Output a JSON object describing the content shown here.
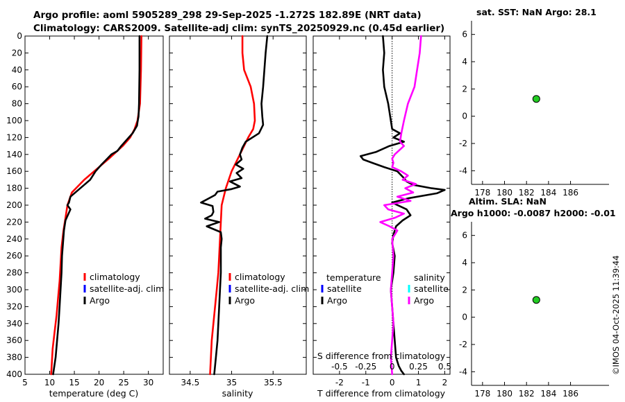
{
  "header": {
    "line1": "Argo profile: aoml 5905289_298 29-Sep-2025 -1.272S 182.89E (NRT data)",
    "line2": "Climatology: CARS2009. Satellite-adj clim: synTS_20250929.nc (0.45d earlier)"
  },
  "side": {
    "sst_title": "sat. SST: NaN Argo: 28.1",
    "sla_title1": "Altim. SLA: NaN",
    "sla_title2": "Argo h1000: -0.0087 h2000: -0.01",
    "credit": "©IMOS 04-Oct-2025 11:39:44"
  },
  "colors": {
    "climatology": "#ff0000",
    "satellite": "#0000ff",
    "argo": "#000000",
    "satellite_sal": "#00ffff",
    "argo_sal_diff": "#ff00ff",
    "marker": "#22cc22"
  },
  "chart_data": [
    {
      "type": "line",
      "name": "temperature-panel",
      "xlabel": "temperature (deg C)",
      "xlim": [
        5,
        33
      ],
      "xticks": [
        5,
        10,
        15,
        20,
        25,
        30
      ],
      "ylim": [
        0,
        400
      ],
      "yticks": [
        0,
        20,
        40,
        60,
        80,
        100,
        120,
        140,
        160,
        180,
        200,
        220,
        240,
        260,
        280,
        300,
        320,
        340,
        360,
        380,
        400
      ],
      "legend": [
        "climatology",
        "satellite-adj. clim",
        "Argo"
      ],
      "series": [
        {
          "name": "climatology",
          "color": "#ff0000",
          "x": [
            28.6,
            28.5,
            28.3,
            27.8,
            27.2,
            26.3,
            24.8,
            22.0,
            19.0,
            17.0,
            14.5,
            13.6,
            13.2,
            12.8,
            12.4,
            12.2,
            12.0,
            11.7,
            11.4,
            11.0,
            10.6,
            10.3
          ],
          "depth": [
            0,
            40,
            80,
            100,
            110,
            120,
            130,
            145,
            160,
            170,
            185,
            200,
            215,
            230,
            250,
            270,
            290,
            310,
            330,
            350,
            370,
            400
          ]
        },
        {
          "name": "Argo",
          "color": "#000000",
          "x": [
            28.2,
            28.2,
            28.1,
            28.0,
            27.8,
            27.7,
            26.8,
            24.5,
            23.7,
            22.5,
            21.5,
            20.5,
            19.3,
            18.2,
            15.2,
            14.2,
            13.9,
            13.6,
            14.2,
            13.2,
            12.9,
            12.7,
            12.5,
            12.4,
            12.2,
            12.0,
            11.8,
            11.5,
            11.2,
            10.7
          ],
          "depth": [
            0,
            40,
            80,
            95,
            102,
            106,
            115,
            130,
            136,
            140,
            146,
            152,
            160,
            170,
            185,
            190,
            197,
            200,
            205,
            218,
            230,
            245,
            260,
            280,
            300,
            320,
            340,
            360,
            380,
            400
          ]
        }
      ]
    },
    {
      "type": "line",
      "name": "salinity-panel",
      "xlabel": "salinity",
      "xlim": [
        34.25,
        35.9
      ],
      "xticks": [
        34.5,
        35,
        35.5
      ],
      "ylim": [
        0,
        400
      ],
      "legend": [
        "climatology",
        "satellite-adj. clim",
        "Argo"
      ],
      "series": [
        {
          "name": "climatology",
          "color": "#ff0000",
          "x": [
            35.13,
            35.13,
            35.15,
            35.23,
            35.27,
            35.28,
            35.26,
            35.2,
            35.1,
            35.0,
            34.93,
            34.88,
            34.87,
            34.86,
            34.85,
            34.84,
            34.82,
            34.8,
            34.78,
            34.76,
            34.74
          ],
          "depth": [
            0,
            20,
            40,
            60,
            80,
            100,
            110,
            120,
            140,
            160,
            180,
            200,
            220,
            240,
            260,
            280,
            300,
            320,
            340,
            360,
            400
          ]
        },
        {
          "name": "Argo",
          "color": "#000000",
          "x": [
            35.43,
            35.41,
            35.38,
            35.36,
            35.37,
            35.38,
            35.33,
            35.17,
            35.13,
            35.1,
            35.12,
            35.05,
            35.14,
            35.06,
            35.12,
            34.98,
            35.1,
            35.0,
            34.83,
            34.8,
            34.63,
            34.77,
            34.78,
            34.76,
            34.68,
            34.85,
            34.7,
            34.87,
            34.88,
            34.87,
            34.87,
            34.87,
            34.86,
            34.85,
            34.84,
            34.83,
            34.81,
            34.79
          ],
          "depth": [
            0,
            20,
            60,
            80,
            95,
            105,
            115,
            125,
            132,
            140,
            146,
            152,
            157,
            162,
            168,
            172,
            178,
            181,
            184,
            188,
            197,
            201,
            208,
            212,
            216,
            220,
            225,
            232,
            240,
            250,
            260,
            280,
            300,
            320,
            340,
            360,
            380,
            400
          ]
        }
      ]
    },
    {
      "type": "line",
      "name": "difference-panel",
      "xlabel": "T difference from climatology",
      "xlabel_top": "S difference from climatology",
      "xlim": [
        -3,
        2.2
      ],
      "xticks": [
        -2,
        -1,
        0,
        1,
        2
      ],
      "xticks_S": [
        -0.5,
        -0.25,
        0,
        0.25,
        0.5
      ],
      "xtick_labels_S": [
        "-0.5",
        "-0.25",
        "0",
        "0.25",
        "0.5"
      ],
      "ylim": [
        0,
        400
      ],
      "legend_temperature_title": "temperature",
      "legend_salinity_title": "salinity",
      "legend_temperature": [
        "satellite",
        "Argo"
      ],
      "legend_salinity": [
        "satellite",
        "Argo"
      ],
      "series": [
        {
          "name": "Argo temperature difference",
          "color": "#000000",
          "x": [
            -0.35,
            -0.3,
            -0.35,
            -0.3,
            -0.15,
            -0.05,
            0.0,
            0.3,
            0.05,
            0.45,
            -0.1,
            -0.6,
            -1.2,
            -1.1,
            -0.75,
            -0.3,
            0.2,
            0.45,
            0.55,
            0.8,
            1.5,
            2.0,
            1.7,
            0.6,
            0.0,
            0.55,
            0.7,
            0.4,
            0.15,
            0.05,
            0.0,
            0.1,
            0.05,
            -0.05,
            0.0,
            0.05,
            0.1,
            0.15,
            0.25,
            0.35,
            0.45
          ],
          "depth": [
            0,
            20,
            40,
            60,
            80,
            100,
            110,
            115,
            120,
            125,
            130,
            137,
            142,
            146,
            150,
            155,
            160,
            168,
            172,
            176,
            180,
            182,
            186,
            192,
            197,
            205,
            212,
            218,
            225,
            235,
            245,
            260,
            280,
            300,
            320,
            340,
            360,
            380,
            390,
            396,
            400
          ]
        },
        {
          "name": "Argo salinity difference",
          "color": "#ff00ff",
          "x": [
            1.1,
            1.05,
            0.95,
            0.85,
            0.6,
            0.45,
            0.35,
            0.3,
            0.45,
            0.1,
            0.0,
            0.05,
            0.0,
            0.35,
            0.6,
            0.4,
            0.9,
            0.5,
            0.8,
            0.2,
            0.7,
            -0.3,
            -0.15,
            0.45,
            0.1,
            -0.45,
            -0.1,
            0.2,
            0.0,
            0.05,
            0.0,
            -0.05,
            0.0,
            0.05,
            0.0,
            -0.05,
            0.0
          ],
          "depth": [
            0,
            20,
            40,
            60,
            80,
            100,
            115,
            125,
            130,
            140,
            145,
            150,
            155,
            160,
            165,
            170,
            175,
            180,
            185,
            190,
            195,
            200,
            205,
            210,
            215,
            220,
            225,
            230,
            240,
            260,
            280,
            300,
            320,
            340,
            360,
            380,
            400
          ]
        }
      ]
    },
    {
      "type": "scatter",
      "name": "sst-panel",
      "xlim": [
        177,
        189.5
      ],
      "xticks": [
        178,
        180,
        182,
        184,
        186
      ],
      "ylim": [
        -5,
        7
      ],
      "yticks": [
        -4,
        -2,
        0,
        2,
        4,
        6
      ],
      "points": [
        {
          "x": 182.89,
          "y": 1.27
        }
      ]
    },
    {
      "type": "scatter",
      "name": "sla-panel",
      "xlim": [
        177,
        189.5
      ],
      "xticks": [
        178,
        180,
        182,
        184,
        186
      ],
      "ylim": [
        -5,
        7
      ],
      "yticks": [
        -4,
        -2,
        0,
        2,
        4,
        6
      ],
      "points": [
        {
          "x": 182.89,
          "y": 1.27
        }
      ]
    }
  ]
}
